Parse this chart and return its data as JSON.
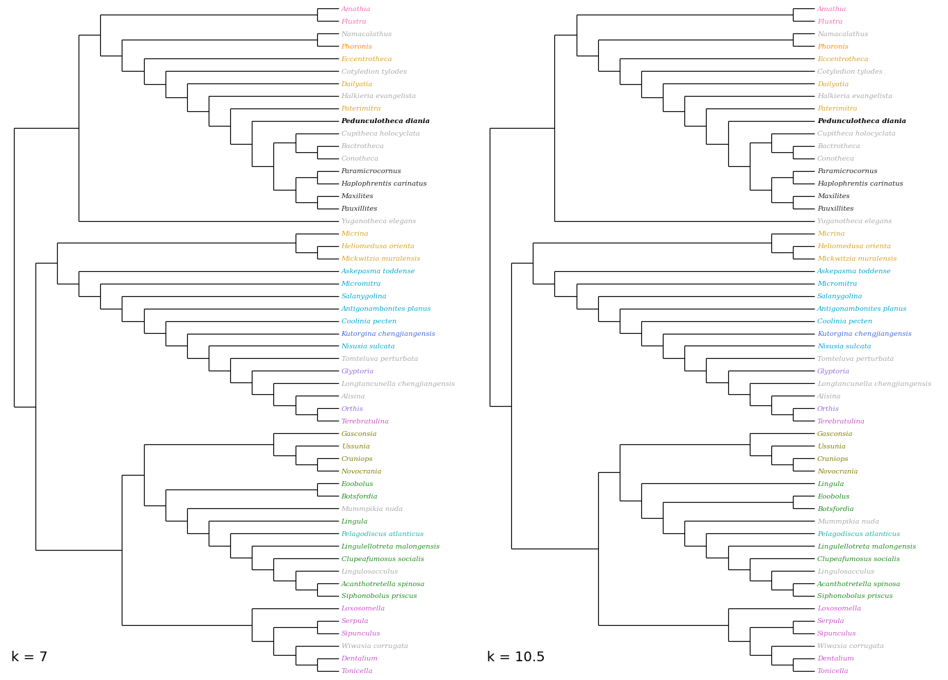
{
  "title_left": "k = 7",
  "title_right": "k = 10.5",
  "background": "#ffffff",
  "taxa": [
    {
      "name": "Amathia",
      "color": "#ff69b4",
      "style": "italic"
    },
    {
      "name": "Flustra",
      "color": "#ff69b4",
      "style": "italic"
    },
    {
      "name": "Namacalathus",
      "color": "#aaaaaa",
      "style": "italic"
    },
    {
      "name": "Phoronis",
      "color": "#ff8c00",
      "style": "italic"
    },
    {
      "name": "Eccentrotheca",
      "color": "#daa520",
      "style": "italic"
    },
    {
      "name": "Cotyledion tylodes",
      "color": "#aaaaaa",
      "style": "italic"
    },
    {
      "name": "Dailyatia",
      "color": "#daa520",
      "style": "italic"
    },
    {
      "name": "Halkieria evangelista",
      "color": "#aaaaaa",
      "style": "italic"
    },
    {
      "name": "Paterimitra",
      "color": "#daa520",
      "style": "italic"
    },
    {
      "name": "Pedunculotheca diania",
      "color": "#000000",
      "style": "bolditalic"
    },
    {
      "name": "Cupitheca holocyclata",
      "color": "#aaaaaa",
      "style": "italic"
    },
    {
      "name": "Bactrotheca",
      "color": "#aaaaaa",
      "style": "italic"
    },
    {
      "name": "Conotheca",
      "color": "#aaaaaa",
      "style": "italic"
    },
    {
      "name": "Paramicrocornus",
      "color": "#222222",
      "style": "italic"
    },
    {
      "name": "Haplophrentis carinatus",
      "color": "#222222",
      "style": "italic"
    },
    {
      "name": "Maxilites",
      "color": "#222222",
      "style": "italic"
    },
    {
      "name": "Pauxillites",
      "color": "#222222",
      "style": "italic"
    },
    {
      "name": "Yuganotheca elegans",
      "color": "#aaaaaa",
      "style": "italic"
    },
    {
      "name": "Micrina",
      "color": "#daa520",
      "style": "italic"
    },
    {
      "name": "Heliomedusa orienta",
      "color": "#daa520",
      "style": "italic"
    },
    {
      "name": "Mickwitzia muralensis",
      "color": "#daa520",
      "style": "italic"
    },
    {
      "name": "Askepasma toddense",
      "color": "#00aacc",
      "style": "italic"
    },
    {
      "name": "Micromitra",
      "color": "#00aacc",
      "style": "italic"
    },
    {
      "name": "Salanygolina",
      "color": "#00aacc",
      "style": "italic"
    },
    {
      "name": "Antigonambonites planus",
      "color": "#00aacc",
      "style": "italic"
    },
    {
      "name": "Coolinia pecten",
      "color": "#00aacc",
      "style": "italic"
    },
    {
      "name": "Kutorgina chengjiangensis",
      "color": "#4169e1",
      "style": "italic"
    },
    {
      "name": "Nisusia sulcata",
      "color": "#00aacc",
      "style": "italic"
    },
    {
      "name": "Tomteluva perturbata",
      "color": "#aaaaaa",
      "style": "italic"
    },
    {
      "name": "Glyptoria",
      "color": "#9370db",
      "style": "italic"
    },
    {
      "name": "Longtancunella chengjiangensis",
      "color": "#aaaaaa",
      "style": "italic"
    },
    {
      "name": "Alisina",
      "color": "#aaaaaa",
      "style": "italic"
    },
    {
      "name": "Orthis",
      "color": "#9370db",
      "style": "italic"
    },
    {
      "name": "Terebratulina",
      "color": "#cc55cc",
      "style": "italic"
    },
    {
      "name": "Gasconsia",
      "color": "#808000",
      "style": "italic"
    },
    {
      "name": "Ussunia",
      "color": "#808000",
      "style": "italic"
    },
    {
      "name": "Craniops",
      "color": "#808000",
      "style": "italic"
    },
    {
      "name": "Novocrania",
      "color": "#808000",
      "style": "italic"
    },
    {
      "name": "Eoobolus",
      "color": "#228b22",
      "style": "italic"
    },
    {
      "name": "Botsfordia",
      "color": "#228b22",
      "style": "italic"
    },
    {
      "name": "Mummpikia nuda",
      "color": "#aaaaaa",
      "style": "italic"
    },
    {
      "name": "Lingula",
      "color": "#228b22",
      "style": "italic"
    },
    {
      "name": "Pelagodiscus atlanticus",
      "color": "#20b2aa",
      "style": "italic"
    },
    {
      "name": "Lingulellotreta malongensis",
      "color": "#228b22",
      "style": "italic"
    },
    {
      "name": "Clupeafumosus socialis",
      "color": "#228b22",
      "style": "italic"
    },
    {
      "name": "Lingulosacculus",
      "color": "#aaaaaa",
      "style": "italic"
    },
    {
      "name": "Acanthotretella spinosa",
      "color": "#228b22",
      "style": "italic"
    },
    {
      "name": "Siphonobolus priscus",
      "color": "#228b22",
      "style": "italic"
    },
    {
      "name": "Loxosomella",
      "color": "#cc55cc",
      "style": "italic"
    },
    {
      "name": "Serpula",
      "color": "#cc55cc",
      "style": "italic"
    },
    {
      "name": "Sipunculus",
      "color": "#cc55cc",
      "style": "italic"
    },
    {
      "name": "Wiwaxia corrugata",
      "color": "#aaaaaa",
      "style": "italic"
    },
    {
      "name": "Dentalium",
      "color": "#cc55cc",
      "style": "italic"
    },
    {
      "name": "Tonicella",
      "color": "#cc55cc",
      "style": "italic"
    }
  ],
  "tree_k7": [
    [
      [
        [
          "Amathia",
          "Flustra"
        ],
        [
          [
            "Namacalathus",
            "Phoronis"
          ],
          [
            "Eccentrotheca",
            [
              "Cotyledion tylodes",
              [
                "Dailyatia",
                [
                  "Halkieria evangelista",
                  [
                    "Paterimitra",
                    [
                      "Pedunculotheca diania",
                      [
                        [
                          "Cupitheca holocyclata",
                          [
                            "Bactrotheca",
                            "Conotheca"
                          ]
                        ],
                        [
                          [
                            "Paramicrocornus",
                            "Haplophrentis carinatus"
                          ],
                          [
                            "Maxilites",
                            "Pauxillites"
                          ]
                        ]
                      ]
                    ]
                  ]
                ]
              ]
            ]
          ]
        ]
      ],
      "Yuganotheca elegans"
    ],
    [
      [
        [
          "Micrina",
          [
            "Heliomedusa orienta",
            "Mickwitzia muralensis"
          ]
        ],
        [
          "Askepasma toddense",
          [
            "Micromitra",
            [
              "Salanygolina",
              [
                "Antigonambonites planus",
                [
                  "Coolinia pecten",
                  [
                    "Kutorgina chengjiangensis",
                    [
                      "Nisusia sulcata",
                      [
                        "Tomteluva perturbata",
                        [
                          "Glyptoria",
                          [
                            "Longtancunella chengjiangensis",
                            [
                              "Alisina",
                              [
                                "Orthis",
                                "Terebratulina"
                              ]
                            ]
                          ]
                        ]
                      ]
                    ]
                  ]
                ]
              ]
            ]
          ]
        ]
      ],
      [
        [
          [
            "Gasconsia",
            [
              "Ussunia",
              [
                "Craniops",
                "Novocrania"
              ]
            ]
          ],
          [
            [
              "Eoobolus",
              "Botsfordia"
            ],
            [
              "Mummpikia nuda",
              [
                "Lingula",
                [
                  "Pelagodiscus atlanticus",
                  [
                    "Lingulellotreta malongensis",
                    [
                      "Clupeafumosus socialis",
                      [
                        "Lingulosacculus",
                        [
                          "Acanthotretella spinosa",
                          "Siphonobolus priscus"
                        ]
                      ]
                    ]
                  ]
                ]
              ]
            ]
          ]
        ],
        [
          "Loxosomella",
          [
            [
              "Serpula",
              "Sipunculus"
            ],
            [
              "Wiwaxia corrugata",
              [
                "Dentalium",
                "Tonicella"
              ]
            ]
          ]
        ]
      ]
    ]
  ],
  "tree_k10": [
    [
      [
        [
          "Amathia",
          "Flustra"
        ],
        [
          [
            "Namacalathus",
            "Phoronis"
          ],
          [
            "Eccentrotheca",
            [
              "Cotyledion tylodes",
              [
                "Dailyatia",
                [
                  "Halkieria evangelista",
                  [
                    "Paterimitra",
                    [
                      "Pedunculotheca diania",
                      [
                        [
                          "Cupitheca holocyclata",
                          [
                            "Bactrotheca",
                            "Conotheca"
                          ]
                        ],
                        [
                          [
                            "Paramicrocornus",
                            "Haplophrentis carinatus"
                          ],
                          [
                            "Maxilites",
                            "Pauxillites"
                          ]
                        ]
                      ]
                    ]
                  ]
                ]
              ]
            ]
          ]
        ]
      ],
      "Yuganotheca elegans"
    ],
    [
      [
        [
          "Micrina",
          [
            "Heliomedusa orienta",
            "Mickwitzia muralensis"
          ]
        ],
        [
          "Askepasma toddense",
          [
            "Micromitra",
            [
              "Salanygolina",
              [
                "Antigonambonites planus",
                [
                  "Coolinia pecten",
                  [
                    "Kutorgina chengjiangensis",
                    [
                      "Nisusia sulcata",
                      [
                        "Tomteluva perturbata",
                        [
                          "Glyptoria",
                          [
                            "Longtancunella chengjiangensis",
                            [
                              "Alisina",
                              [
                                "Orthis",
                                "Terebratulina"
                              ]
                            ]
                          ]
                        ]
                      ]
                    ]
                  ]
                ]
              ]
            ]
          ]
        ]
      ],
      [
        [
          [
            "Gasconsia",
            [
              "Ussunia",
              [
                "Craniops",
                "Novocrania"
              ]
            ]
          ],
          [
            "Lingula",
            [
              [
                "Eoobolus",
                "Botsfordia"
              ],
              [
                "Mummpikia nuda",
                [
                  "Pelagodiscus atlanticus",
                  [
                    "Lingulellotreta malongensis",
                    [
                      "Clupeafumosus socialis",
                      [
                        "Lingulosacculus",
                        [
                          "Acanthotretella spinosa",
                          "Siphonobolus priscus"
                        ]
                      ]
                    ]
                  ]
                ]
              ]
            ]
          ]
        ],
        [
          "Loxosomella",
          [
            [
              "Serpula",
              "Sipunculus"
            ],
            [
              "Wiwaxia corrugata",
              [
                "Dentalium",
                "Tonicella"
              ]
            ]
          ]
        ]
      ]
    ]
  ]
}
